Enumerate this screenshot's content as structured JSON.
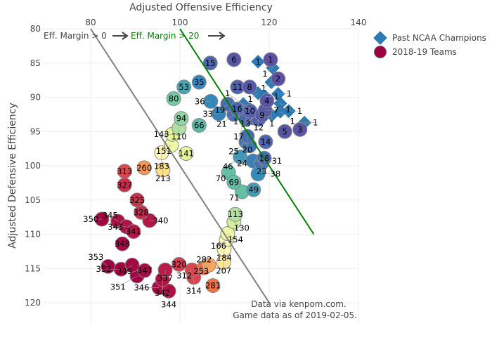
{
  "chart_data": {
    "type": "scatter",
    "xlabel": "Adjusted Offensive Efficiency",
    "ylabel": "Adjusted Defensive Efficiency",
    "x_axis_position": "top",
    "y_axis_reversed": true,
    "xlim": [
      69.4,
      140
    ],
    "ylim": [
      80,
      123
    ],
    "xticks": [
      80,
      100,
      120,
      140
    ],
    "yticks": [
      80,
      85,
      90,
      95,
      100,
      105,
      110,
      115,
      120
    ],
    "grid": true,
    "legend_position": "top-right",
    "colorscale": [
      "#5e4fa2",
      "#3288bd",
      "#66c2a5",
      "#abdda4",
      "#e6f598",
      "#ffffbf",
      "#fee08b",
      "#fdae61",
      "#f46d43",
      "#d53e4f",
      "#9e0142"
    ],
    "total_teams": 353,
    "series": [
      {
        "name": "Past NCAA Champions",
        "marker": "diamond",
        "color": "#2e7cb5",
        "points": [
          {
            "label": "1",
            "x": 117.5,
            "y": 84.8
          },
          {
            "label": "1",
            "x": 120.8,
            "y": 85.7
          },
          {
            "label": "1",
            "x": 120.5,
            "y": 87.8
          },
          {
            "label": "1",
            "x": 117.5,
            "y": 89.4
          },
          {
            "label": "1",
            "x": 119.1,
            "y": 89.9
          },
          {
            "label": "1",
            "x": 122.0,
            "y": 89.5
          },
          {
            "label": "1",
            "x": 122.5,
            "y": 90.9
          },
          {
            "label": "1",
            "x": 124.4,
            "y": 92.0
          },
          {
            "label": "1",
            "x": 122.5,
            "y": 92.1
          },
          {
            "label": "1",
            "x": 120.6,
            "y": 92.6
          },
          {
            "label": "1",
            "x": 127.9,
            "y": 93.7
          },
          {
            "label": "1",
            "x": 114.2,
            "y": 91.0
          },
          {
            "label": "1",
            "x": 115.7,
            "y": 91.7
          }
        ]
      },
      {
        "name": "2018-19 Teams",
        "marker": "circle",
        "color": "#9e0142",
        "points": [
          {
            "label": "1",
            "x": 120.3,
            "y": 84.5
          },
          {
            "label": "2",
            "x": 122.0,
            "y": 87.3
          },
          {
            "label": "3",
            "x": 126.9,
            "y": 94.7
          },
          {
            "label": "4",
            "x": 119.5,
            "y": 90.5
          },
          {
            "label": "5",
            "x": 123.5,
            "y": 95.0
          },
          {
            "label": "6",
            "x": 112.1,
            "y": 84.5
          },
          {
            "label": "7",
            "x": 119.1,
            "y": 91.9
          },
          {
            "label": "8",
            "x": 115.6,
            "y": 88.5
          },
          {
            "label": "9",
            "x": 118.4,
            "y": 92.6
          },
          {
            "label": "10",
            "x": 115.7,
            "y": 92.0
          },
          {
            "label": "11",
            "x": 112.9,
            "y": 88.5
          },
          {
            "label": "12",
            "x": 117.6,
            "y": 93.2
          },
          {
            "label": "13",
            "x": 116.4,
            "y": 93.0
          },
          {
            "label": "14",
            "x": 119.2,
            "y": 96.5
          },
          {
            "label": "15",
            "x": 106.8,
            "y": 85.0
          },
          {
            "label": "16",
            "x": 112.8,
            "y": 91.7
          },
          {
            "label": "17",
            "x": 114.8,
            "y": 93.2
          },
          {
            "label": "18",
            "x": 118.9,
            "y": 98.9
          },
          {
            "label": "19",
            "x": 110.7,
            "y": 91.0
          },
          {
            "label": "20",
            "x": 115.1,
            "y": 95.7
          },
          {
            "label": "21",
            "x": 112.1,
            "y": 92.5
          },
          {
            "label": "23",
            "x": 118.3,
            "y": 99.6
          },
          {
            "label": "24",
            "x": 115.6,
            "y": 97.1
          },
          {
            "label": "25",
            "x": 114.8,
            "y": 96.5
          },
          {
            "label": "31",
            "x": 116.4,
            "y": 99.3
          },
          {
            "label": "33",
            "x": 108.7,
            "y": 92.4
          },
          {
            "label": "35",
            "x": 104.3,
            "y": 87.8
          },
          {
            "label": "36",
            "x": 106.9,
            "y": 90.6
          },
          {
            "label": "38",
            "x": 117.5,
            "y": 101.2
          },
          {
            "label": "46",
            "x": 113.5,
            "y": 98.7
          },
          {
            "label": "49",
            "x": 116.5,
            "y": 103.5
          },
          {
            "label": "53",
            "x": 100.9,
            "y": 88.5
          },
          {
            "label": "66",
            "x": 104.3,
            "y": 94.1
          },
          {
            "label": "69",
            "x": 112.1,
            "y": 102.4
          },
          {
            "label": "70",
            "x": 110.9,
            "y": 101.0
          },
          {
            "label": "71",
            "x": 113.9,
            "y": 103.8
          },
          {
            "label": "80",
            "x": 98.6,
            "y": 90.2
          },
          {
            "label": "94",
            "x": 100.3,
            "y": 93.1
          },
          {
            "label": "110",
            "x": 99.8,
            "y": 94.5
          },
          {
            "label": "113",
            "x": 112.4,
            "y": 107.1
          },
          {
            "label": "130",
            "x": 112.1,
            "y": 108.2
          },
          {
            "label": "141",
            "x": 101.4,
            "y": 98.2
          },
          {
            "label": "143",
            "x": 98.3,
            "y": 95.4
          },
          {
            "label": "151",
            "x": 98.1,
            "y": 97.0
          },
          {
            "label": "154",
            "x": 110.7,
            "y": 109.9
          },
          {
            "label": "166",
            "x": 110.4,
            "y": 110.8
          },
          {
            "label": "183",
            "x": 95.9,
            "y": 98.1
          },
          {
            "label": "184",
            "x": 109.9,
            "y": 112.2
          },
          {
            "label": "207",
            "x": 109.8,
            "y": 114.1
          },
          {
            "label": "213",
            "x": 96.2,
            "y": 100.6
          },
          {
            "label": "253",
            "x": 106.5,
            "y": 114.5
          },
          {
            "label": "260",
            "x": 92.0,
            "y": 100.3
          },
          {
            "label": "281",
            "x": 107.4,
            "y": 117.5
          },
          {
            "label": "282",
            "x": 105.4,
            "y": 114.9
          },
          {
            "label": "312",
            "x": 102.7,
            "y": 115.2
          },
          {
            "label": "313",
            "x": 87.6,
            "y": 100.8
          },
          {
            "label": "314",
            "x": 103.1,
            "y": 116.3
          },
          {
            "label": "320",
            "x": 99.8,
            "y": 114.4
          },
          {
            "label": "325",
            "x": 90.4,
            "y": 105.0
          },
          {
            "label": "327",
            "x": 87.6,
            "y": 102.8
          },
          {
            "label": "328",
            "x": 91.3,
            "y": 106.8
          },
          {
            "label": "337",
            "x": 96.7,
            "y": 115.2
          },
          {
            "label": "340",
            "x": 93.2,
            "y": 108.0
          },
          {
            "label": "341",
            "x": 89.6,
            "y": 109.6
          },
          {
            "label": "342",
            "x": 96.1,
            "y": 116.6
          },
          {
            "label": "343",
            "x": 88.0,
            "y": 108.9
          },
          {
            "label": "344",
            "x": 97.5,
            "y": 118.3
          },
          {
            "label": "345",
            "x": 86.1,
            "y": 108.1
          },
          {
            "label": "346",
            "x": 95.3,
            "y": 117.8
          },
          {
            "label": "347",
            "x": 92.1,
            "y": 115.3
          },
          {
            "label": "348",
            "x": 87.1,
            "y": 111.4
          },
          {
            "label": "349",
            "x": 89.3,
            "y": 114.5
          },
          {
            "label": "350",
            "x": 82.5,
            "y": 107.8
          },
          {
            "label": "351",
            "x": 90.4,
            "y": 116.1
          },
          {
            "label": "352",
            "x": 86.8,
            "y": 115.1
          },
          {
            "label": "353",
            "x": 83.9,
            "y": 114.7
          }
        ]
      }
    ],
    "reference_lines": [
      {
        "label": "Eff. Margin > 0",
        "margin": 0,
        "color": "#808080",
        "from_y": 80,
        "to_y": 120
      },
      {
        "label": "Eff. Margin > 20",
        "margin": 20,
        "color": "#008000",
        "from_y": 80,
        "to_y": 110
      }
    ],
    "annotations": {
      "source": "Data via kenpom.com.",
      "date": "Game data as of 2019-02-05."
    }
  }
}
